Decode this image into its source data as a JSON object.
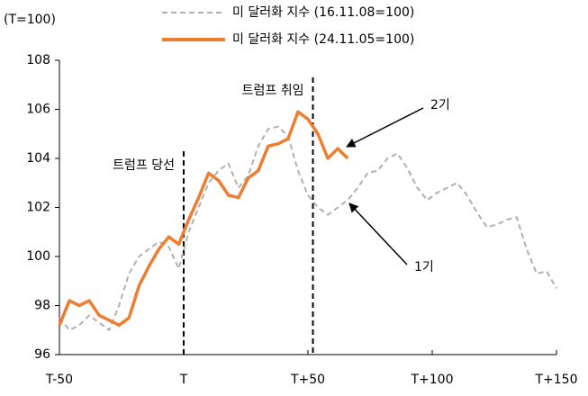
{
  "chart_data": {
    "type": "line",
    "y_label": "(T=100)",
    "x": [
      -50,
      -46,
      -42,
      -38,
      -34,
      -30,
      -26,
      -22,
      -18,
      -14,
      -10,
      -6,
      -2,
      2,
      6,
      10,
      14,
      18,
      22,
      26,
      30,
      34,
      38,
      42,
      46,
      50,
      54,
      58,
      62,
      66,
      70,
      74,
      78,
      82,
      86,
      90,
      94,
      98,
      102,
      106,
      110,
      114,
      118,
      122,
      126,
      130,
      134,
      138,
      142,
      146,
      150
    ],
    "series": [
      {
        "name": "미 달러화 지수 (16.11.08=100)",
        "color": "#b0b0b0",
        "dashed": true,
        "values": [
          97.5,
          97.0,
          97.2,
          97.6,
          97.3,
          97.0,
          98.0,
          99.3,
          100.0,
          100.3,
          100.6,
          100.4,
          99.5,
          101.0,
          102.0,
          103.0,
          103.5,
          103.8,
          102.8,
          103.3,
          104.5,
          105.2,
          105.3,
          104.9,
          103.5,
          102.5,
          102.0,
          101.7,
          102.0,
          102.3,
          102.8,
          103.4,
          103.5,
          104.0,
          104.2,
          103.6,
          102.8,
          102.3,
          102.6,
          102.8,
          103.0,
          102.5,
          101.8,
          101.2,
          101.3,
          101.5,
          101.6,
          100.3,
          99.3,
          99.4,
          98.7
        ]
      },
      {
        "name": "미 달러화 지수 (24.11.05=100)",
        "color": "#ed7d31",
        "dashed": false,
        "values": [
          97.2,
          98.2,
          98.0,
          98.2,
          97.6,
          97.4,
          97.2,
          97.5,
          98.8,
          99.6,
          100.3,
          100.8,
          100.5,
          101.5,
          102.4,
          103.4,
          103.1,
          102.5,
          102.4,
          103.2,
          103.5,
          104.5,
          104.6,
          104.8,
          105.9,
          105.6,
          105.0,
          104.0,
          104.4,
          104.0,
          null,
          null,
          null,
          null,
          null,
          null,
          null,
          null,
          null,
          null,
          null,
          null,
          null,
          null,
          null,
          null,
          null,
          null,
          null,
          null,
          null
        ]
      }
    ],
    "xlim": [
      -50,
      150
    ],
    "xticks": [
      {
        "value": -50,
        "label": "T-50"
      },
      {
        "value": 0,
        "label": "T"
      },
      {
        "value": 50,
        "label": "T+50"
      },
      {
        "value": 100,
        "label": "T+100"
      },
      {
        "value": 150,
        "label": "T+150"
      }
    ],
    "ylim": [
      96,
      108
    ],
    "yticks": [
      96,
      98,
      100,
      102,
      104,
      106,
      108
    ],
    "grid": false,
    "vlines": [
      {
        "x": 0,
        "label": "트럼프 당선"
      },
      {
        "x": 52,
        "label": "트럼프 취임"
      }
    ],
    "annotations": [
      "2기",
      "1기"
    ]
  }
}
